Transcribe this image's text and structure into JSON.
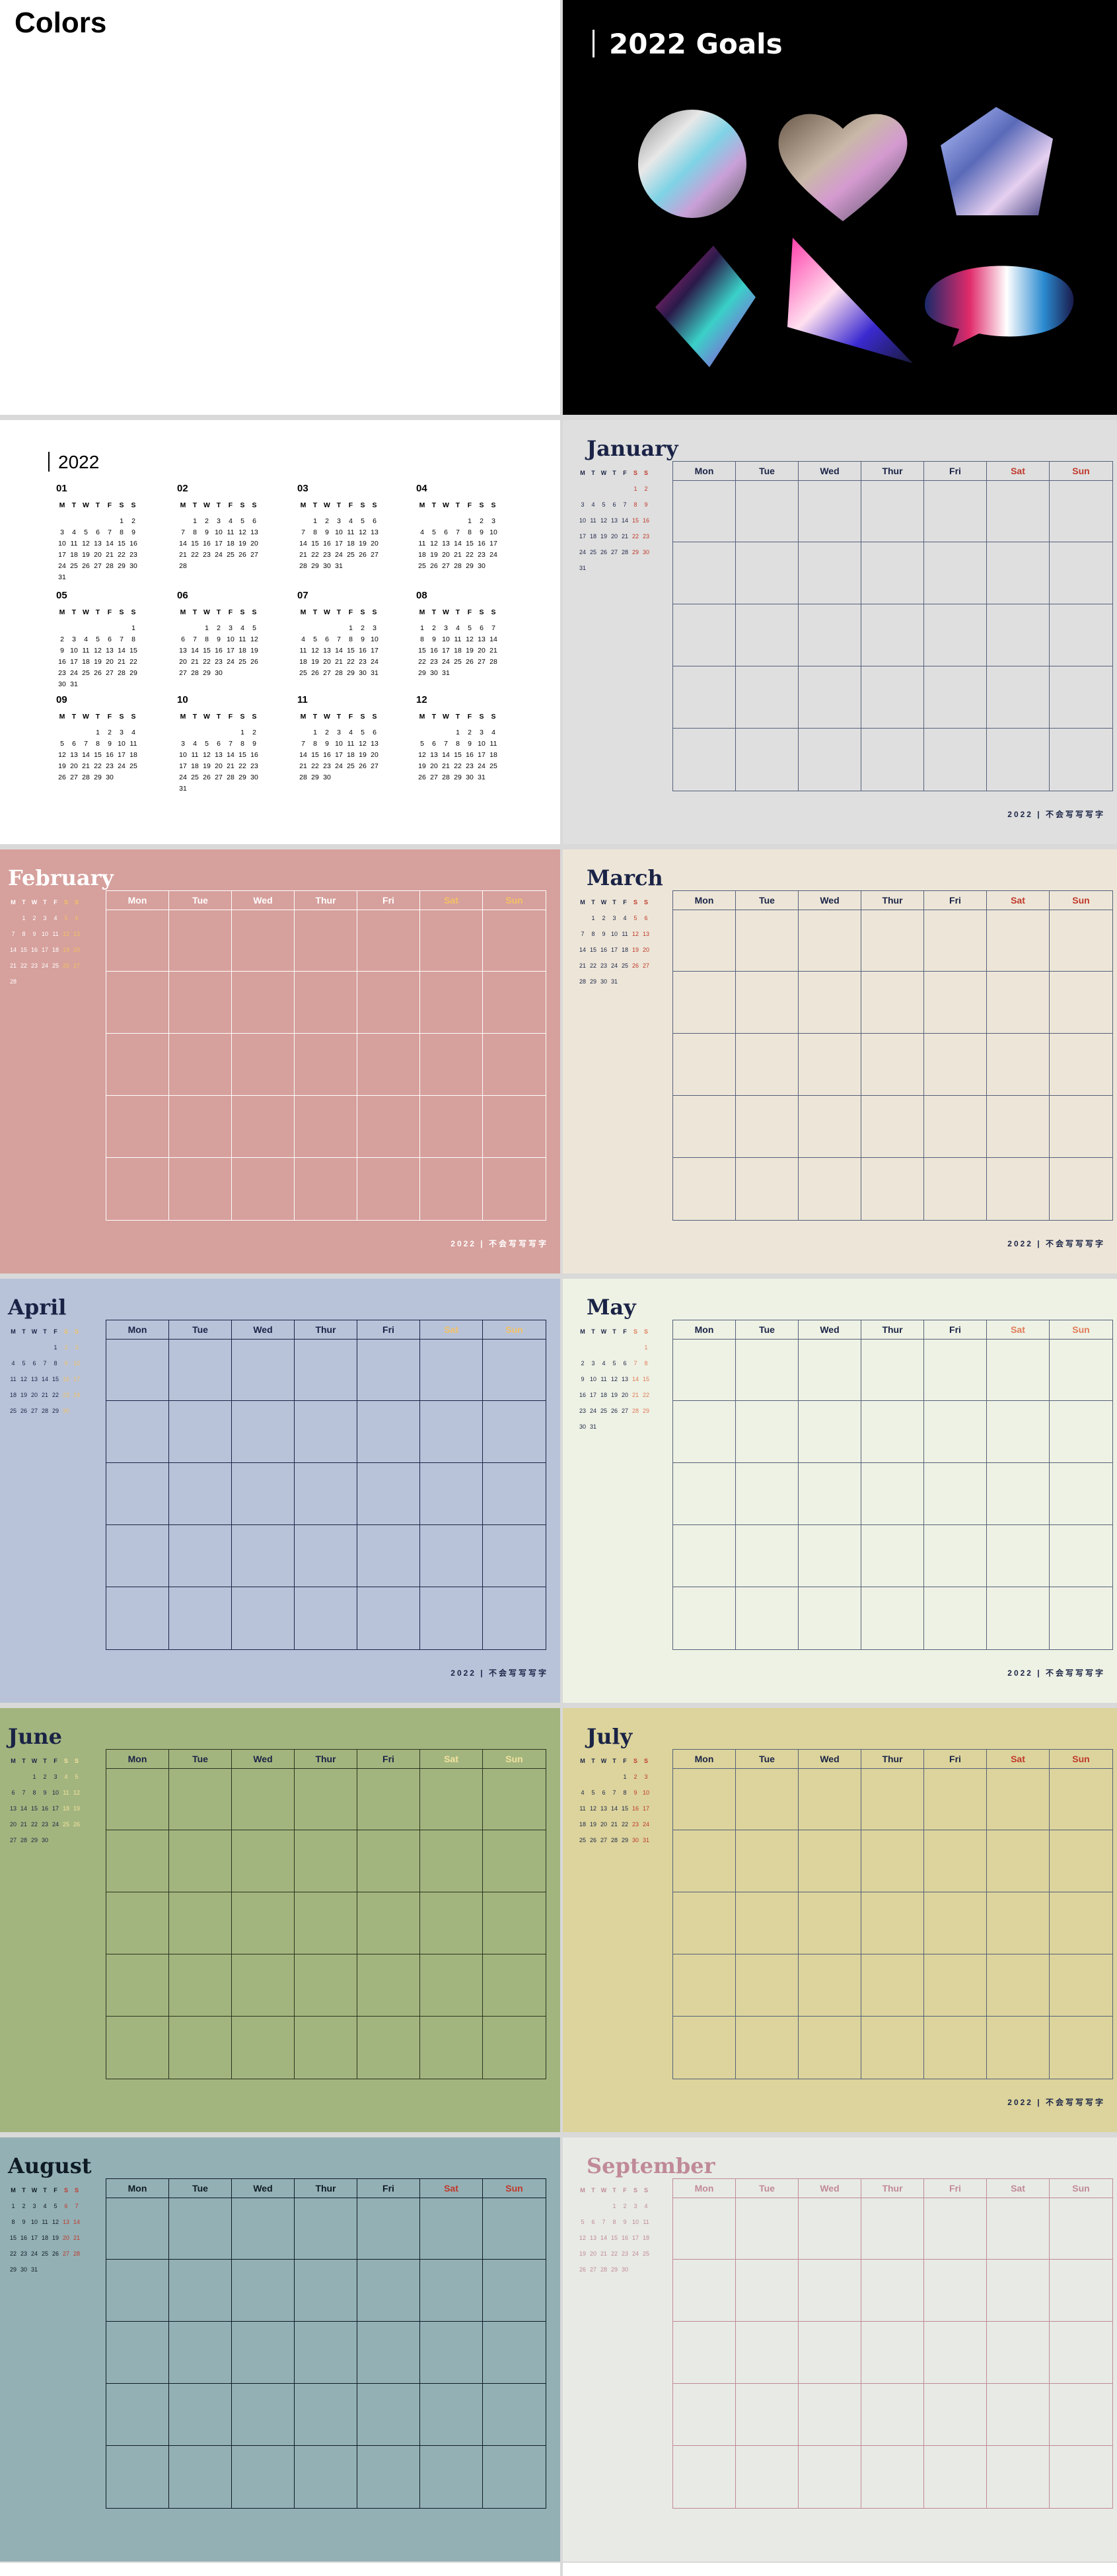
{
  "cover": {
    "title": "Colors"
  },
  "goals": {
    "title": "2022 Goals",
    "shape_names": [
      "circle",
      "heart",
      "pentagon",
      "diamond",
      "triangle",
      "speech-bubble"
    ]
  },
  "year": {
    "title": "2022",
    "weekday_initials": [
      "M",
      "T",
      "W",
      "T",
      "F",
      "S",
      "S"
    ],
    "months": [
      {
        "num": "01",
        "start": 5,
        "days": 31
      },
      {
        "num": "02",
        "start": 1,
        "days": 28
      },
      {
        "num": "03",
        "start": 1,
        "days": 31
      },
      {
        "num": "04",
        "start": 4,
        "days": 30
      },
      {
        "num": "05",
        "start": 6,
        "days": 31
      },
      {
        "num": "06",
        "start": 2,
        "days": 30
      },
      {
        "num": "07",
        "start": 4,
        "days": 31
      },
      {
        "num": "08",
        "start": 0,
        "days": 31
      },
      {
        "num": "09",
        "start": 3,
        "days": 30
      },
      {
        "num": "10",
        "start": 5,
        "days": 31
      },
      {
        "num": "11",
        "start": 1,
        "days": 30
      },
      {
        "num": "12",
        "start": 3,
        "days": 31
      }
    ]
  },
  "table_headers": [
    "Mon",
    "Tue",
    "Wed",
    "Thur",
    "Fri",
    "Sat",
    "Sun"
  ],
  "footer": "2022 | 不会写写写字",
  "months": [
    {
      "name": "January",
      "start": 5,
      "days": 31,
      "bg": "#dfdfdf",
      "title_color": "#1a2346",
      "text_color": "#1a2346",
      "weekend_color": "#c0392b",
      "line_color": "#55607a",
      "footer": true
    },
    {
      "name": "February",
      "start": 1,
      "days": 28,
      "bg": "#d6a09c",
      "title_color": "#ffffff",
      "text_color": "#ffffff",
      "weekend_color": "#f2c166",
      "line_color": "#ffffff",
      "footer": true
    },
    {
      "name": "March",
      "start": 1,
      "days": 31,
      "bg": "#ede6d8",
      "title_color": "#1a2346",
      "text_color": "#1a2346",
      "weekend_color": "#c0392b",
      "line_color": "#55607a",
      "footer": true
    },
    {
      "name": "April",
      "start": 4,
      "days": 30,
      "bg": "#b8c3d9",
      "title_color": "#1a2346",
      "text_color": "#1a2346",
      "weekend_color": "#f2c166",
      "line_color": "#1a2346",
      "footer": true
    },
    {
      "name": "May",
      "start": 6,
      "days": 31,
      "bg": "#eef2e4",
      "title_color": "#1a2346",
      "text_color": "#1a2346",
      "weekend_color": "#e07b5a",
      "line_color": "#55607a",
      "footer": true
    },
    {
      "name": "June",
      "start": 2,
      "days": 30,
      "bg": "#a3b57e",
      "title_color": "#1a2346",
      "text_color": "#1a2346",
      "weekend_color": "#f2e2a0",
      "line_color": "#2a3320",
      "footer": false
    },
    {
      "name": "July",
      "start": 4,
      "days": 31,
      "bg": "#dcd49c",
      "title_color": "#1a2346",
      "text_color": "#1a2346",
      "weekend_color": "#c0392b",
      "line_color": "#55607a",
      "footer": true
    },
    {
      "name": "August",
      "start": 0,
      "days": 31,
      "bg": "#93b0b5",
      "title_color": "#0e1a24",
      "text_color": "#0e1a24",
      "weekend_color": "#c0392b",
      "line_color": "#0e1a24",
      "footer": false
    },
    {
      "name": "September",
      "start": 3,
      "days": 30,
      "bg": "#e8eae6",
      "title_color": "#c08a98",
      "text_color": "#c08a98",
      "weekend_color": "#c08a98",
      "line_color": "#c08a98",
      "footer": false
    }
  ]
}
